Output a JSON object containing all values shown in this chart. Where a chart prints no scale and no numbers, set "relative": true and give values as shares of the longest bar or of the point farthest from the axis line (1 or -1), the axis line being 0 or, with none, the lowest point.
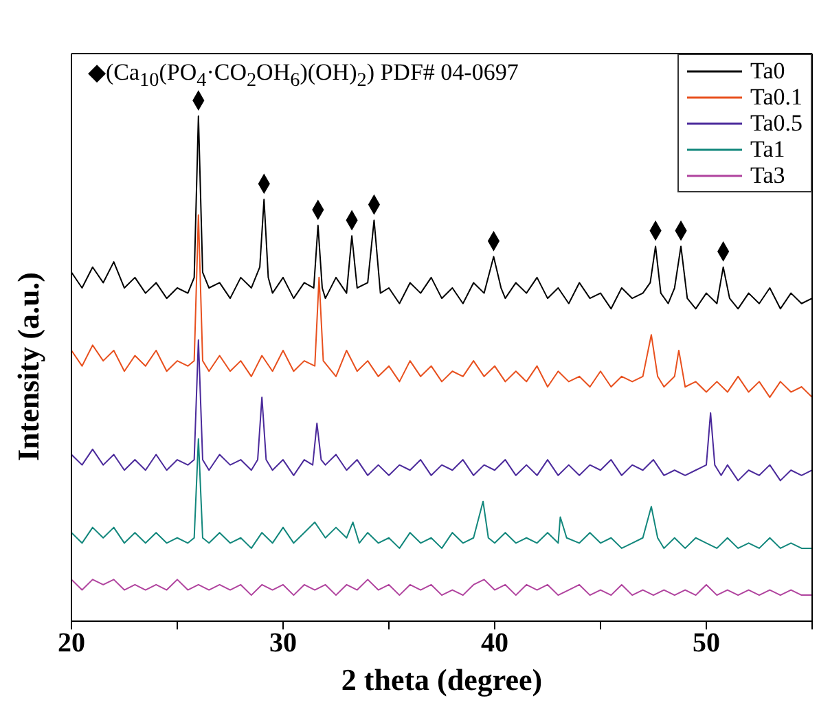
{
  "chart_data": {
    "type": "line",
    "relative": true,
    "xlabel": "2 theta (degree)",
    "ylabel": "Intensity (a.u.)",
    "xlim": [
      20,
      55
    ],
    "xticks": [
      20,
      {
        "value": 25,
        "label": null
      },
      30,
      {
        "value": 35,
        "label": null
      },
      40,
      {
        "value": 45,
        "label": null
      },
      50,
      {
        "value": 55,
        "label": null
      }
    ],
    "legend": "top right",
    "line_style": "solid",
    "annotations": [
      "◆(Ca$_{10}$(PO$_{4}$·CO$_{2}$OH$_{6}$)(OH)$_{2}$) PDF# 04-0697"
    ],
    "series": [
      {
        "name": "Ta0",
        "color": "#000000",
        "x": [
          20,
          20.5,
          21,
          21.5,
          22,
          22.5,
          23,
          23.5,
          24,
          24.5,
          25,
          25.5,
          25.8,
          26.0,
          26.2,
          26.5,
          27,
          27.5,
          28,
          28.5,
          28.9,
          29.1,
          29.3,
          29.5,
          30,
          30.5,
          31,
          31.45,
          31.65,
          31.85,
          32,
          32.5,
          33,
          33.25,
          33.5,
          34,
          34.3,
          34.6,
          35,
          35.5,
          36,
          36.5,
          37,
          37.5,
          38,
          38.5,
          39,
          39.5,
          39.95,
          40.3,
          40.5,
          41,
          41.5,
          42,
          42.5,
          43,
          43.5,
          44,
          44.5,
          45,
          45.5,
          46,
          46.5,
          47,
          47.35,
          47.6,
          47.85,
          48.2,
          48.5,
          48.8,
          49.1,
          49.5,
          50,
          50.5,
          50.8,
          51.1,
          51.5,
          52,
          52.5,
          53,
          53.5,
          54,
          54.5,
          55
        ],
        "values": [
          0.67,
          0.64,
          0.68,
          0.65,
          0.69,
          0.64,
          0.66,
          0.63,
          0.65,
          0.62,
          0.64,
          0.63,
          0.66,
          0.97,
          0.67,
          0.64,
          0.65,
          0.62,
          0.66,
          0.64,
          0.68,
          0.81,
          0.66,
          0.63,
          0.66,
          0.62,
          0.65,
          0.64,
          0.76,
          0.64,
          0.62,
          0.66,
          0.63,
          0.74,
          0.64,
          0.65,
          0.77,
          0.63,
          0.64,
          0.61,
          0.65,
          0.63,
          0.66,
          0.62,
          0.64,
          0.61,
          0.65,
          0.63,
          0.7,
          0.64,
          0.62,
          0.65,
          0.63,
          0.66,
          0.62,
          0.64,
          0.61,
          0.65,
          0.62,
          0.63,
          0.6,
          0.64,
          0.62,
          0.63,
          0.65,
          0.72,
          0.63,
          0.61,
          0.64,
          0.72,
          0.62,
          0.6,
          0.63,
          0.61,
          0.68,
          0.62,
          0.6,
          0.63,
          0.61,
          0.64,
          0.6,
          0.63,
          0.61,
          0.62
        ]
      },
      {
        "name": "Ta0.1",
        "color": "#e8501e",
        "x": [
          20,
          20.5,
          21,
          21.5,
          22,
          22.5,
          23,
          23.5,
          24,
          24.5,
          25,
          25.5,
          25.8,
          26.0,
          26.2,
          26.5,
          27,
          27.5,
          28,
          28.5,
          29,
          29.5,
          30,
          30.5,
          31,
          31.5,
          31.7,
          31.9,
          32.5,
          33,
          33.5,
          34,
          34.5,
          35,
          35.5,
          36,
          36.5,
          37,
          37.5,
          38,
          38.5,
          39,
          39.5,
          40,
          40.5,
          41,
          41.5,
          42,
          42.5,
          43,
          43.5,
          44,
          44.5,
          45,
          45.5,
          46,
          46.5,
          47,
          47.4,
          47.7,
          48,
          48.5,
          48.7,
          49,
          49.5,
          50,
          50.5,
          51,
          51.5,
          52,
          52.5,
          53,
          53.5,
          54,
          54.5,
          55
        ],
        "values": [
          0.52,
          0.49,
          0.53,
          0.5,
          0.52,
          0.48,
          0.51,
          0.49,
          0.52,
          0.48,
          0.5,
          0.49,
          0.5,
          0.78,
          0.5,
          0.48,
          0.51,
          0.48,
          0.5,
          0.47,
          0.51,
          0.48,
          0.52,
          0.48,
          0.5,
          0.49,
          0.66,
          0.5,
          0.47,
          0.52,
          0.48,
          0.5,
          0.47,
          0.49,
          0.46,
          0.5,
          0.47,
          0.49,
          0.46,
          0.48,
          0.47,
          0.5,
          0.47,
          0.49,
          0.46,
          0.48,
          0.46,
          0.49,
          0.45,
          0.48,
          0.46,
          0.47,
          0.45,
          0.48,
          0.45,
          0.47,
          0.46,
          0.47,
          0.55,
          0.47,
          0.45,
          0.47,
          0.52,
          0.45,
          0.46,
          0.44,
          0.46,
          0.44,
          0.47,
          0.44,
          0.46,
          0.43,
          0.46,
          0.44,
          0.45,
          0.43
        ]
      },
      {
        "name": "Ta0.5",
        "color": "#4b2a9b",
        "x": [
          20,
          20.5,
          21,
          21.5,
          22,
          22.5,
          23,
          23.5,
          24,
          24.5,
          25,
          25.5,
          25.8,
          26.0,
          26.2,
          26.5,
          27,
          27.5,
          28,
          28.5,
          28.8,
          29.0,
          29.2,
          29.5,
          30,
          30.5,
          31,
          31.4,
          31.6,
          31.8,
          32,
          32.5,
          33,
          33.5,
          34,
          34.5,
          35,
          35.5,
          36,
          36.5,
          37,
          37.5,
          38,
          38.5,
          39,
          39.5,
          40,
          40.5,
          41,
          41.5,
          42,
          42.5,
          43,
          43.5,
          44,
          44.5,
          45,
          45.5,
          46,
          46.5,
          47,
          47.5,
          48,
          48.5,
          49,
          49.5,
          50,
          50.2,
          50.4,
          50.7,
          51,
          51.5,
          52,
          52.5,
          53,
          53.5,
          54,
          54.5,
          55
        ],
        "values": [
          0.32,
          0.3,
          0.33,
          0.3,
          0.32,
          0.29,
          0.31,
          0.29,
          0.32,
          0.29,
          0.31,
          0.3,
          0.31,
          0.54,
          0.31,
          0.29,
          0.32,
          0.3,
          0.31,
          0.29,
          0.31,
          0.43,
          0.31,
          0.29,
          0.31,
          0.28,
          0.31,
          0.3,
          0.38,
          0.31,
          0.3,
          0.32,
          0.29,
          0.31,
          0.28,
          0.3,
          0.28,
          0.3,
          0.29,
          0.31,
          0.28,
          0.3,
          0.29,
          0.31,
          0.28,
          0.3,
          0.29,
          0.31,
          0.28,
          0.3,
          0.28,
          0.31,
          0.28,
          0.3,
          0.28,
          0.3,
          0.29,
          0.31,
          0.28,
          0.3,
          0.29,
          0.31,
          0.28,
          0.29,
          0.28,
          0.29,
          0.3,
          0.4,
          0.3,
          0.28,
          0.3,
          0.27,
          0.29,
          0.28,
          0.3,
          0.27,
          0.29,
          0.28,
          0.29
        ]
      },
      {
        "name": "Ta1",
        "color": "#12877c",
        "x": [
          20,
          20.5,
          21,
          21.5,
          22,
          22.5,
          23,
          23.5,
          24,
          24.5,
          25,
          25.5,
          25.8,
          26.0,
          26.2,
          26.5,
          27,
          27.5,
          28,
          28.5,
          29,
          29.5,
          30,
          30.5,
          31,
          31.5,
          32,
          32.5,
          33,
          33.3,
          33.6,
          34,
          34.5,
          35,
          35.5,
          36,
          36.5,
          37,
          37.5,
          38,
          38.5,
          39,
          39.45,
          39.7,
          40,
          40.5,
          41,
          41.5,
          42,
          42.5,
          43,
          43.1,
          43.4,
          44,
          44.5,
          45,
          45.5,
          46,
          46.5,
          47,
          47.4,
          47.7,
          48,
          48.5,
          49,
          49.5,
          50,
          50.5,
          51,
          51.5,
          52,
          52.5,
          53,
          53.5,
          54,
          54.5,
          55
        ],
        "values": [
          0.17,
          0.15,
          0.18,
          0.16,
          0.18,
          0.15,
          0.17,
          0.15,
          0.17,
          0.15,
          0.16,
          0.15,
          0.16,
          0.35,
          0.16,
          0.15,
          0.17,
          0.15,
          0.16,
          0.14,
          0.17,
          0.15,
          0.18,
          0.15,
          0.17,
          0.19,
          0.16,
          0.18,
          0.16,
          0.19,
          0.15,
          0.17,
          0.15,
          0.16,
          0.14,
          0.17,
          0.15,
          0.16,
          0.14,
          0.17,
          0.15,
          0.16,
          0.23,
          0.16,
          0.15,
          0.17,
          0.15,
          0.16,
          0.15,
          0.17,
          0.15,
          0.2,
          0.16,
          0.15,
          0.17,
          0.15,
          0.16,
          0.14,
          0.15,
          0.16,
          0.22,
          0.16,
          0.14,
          0.16,
          0.14,
          0.16,
          0.15,
          0.14,
          0.16,
          0.14,
          0.15,
          0.14,
          0.16,
          0.14,
          0.15,
          0.14,
          0.14
        ]
      },
      {
        "name": "Ta3",
        "color": "#b0439e",
        "x": [
          20,
          20.5,
          21,
          21.5,
          22,
          22.5,
          23,
          23.5,
          24,
          24.5,
          25,
          25.5,
          26,
          26.5,
          27,
          27.5,
          28,
          28.5,
          29,
          29.5,
          30,
          30.5,
          31,
          31.5,
          32,
          32.5,
          33,
          33.5,
          34,
          34.5,
          35,
          35.5,
          36,
          36.5,
          37,
          37.5,
          38,
          38.5,
          39,
          39.5,
          40,
          40.5,
          41,
          41.5,
          42,
          42.5,
          43,
          43.5,
          44,
          44.5,
          45,
          45.5,
          46,
          46.5,
          47,
          47.5,
          48,
          48.5,
          49,
          49.5,
          50,
          50.5,
          51,
          51.5,
          52,
          52.5,
          53,
          53.5,
          54,
          54.5,
          55
        ],
        "values": [
          0.08,
          0.06,
          0.08,
          0.07,
          0.08,
          0.06,
          0.07,
          0.06,
          0.07,
          0.06,
          0.08,
          0.06,
          0.07,
          0.06,
          0.07,
          0.06,
          0.07,
          0.05,
          0.07,
          0.06,
          0.07,
          0.05,
          0.07,
          0.06,
          0.07,
          0.05,
          0.07,
          0.06,
          0.08,
          0.06,
          0.07,
          0.05,
          0.07,
          0.06,
          0.07,
          0.05,
          0.06,
          0.05,
          0.07,
          0.08,
          0.06,
          0.07,
          0.05,
          0.07,
          0.06,
          0.07,
          0.05,
          0.06,
          0.07,
          0.05,
          0.06,
          0.05,
          0.07,
          0.05,
          0.06,
          0.05,
          0.06,
          0.05,
          0.06,
          0.05,
          0.07,
          0.05,
          0.06,
          0.05,
          0.06,
          0.05,
          0.06,
          0.05,
          0.06,
          0.05,
          0.05
        ]
      },
      {
        "type": "scatter",
        "marker": "diamond",
        "color": "#000000",
        "x": [
          26.0,
          29.1,
          31.65,
          33.25,
          34.3,
          39.95,
          47.6,
          48.8,
          50.8
        ],
        "values": [
          1.0,
          0.84,
          0.79,
          0.77,
          0.8,
          0.73,
          0.75,
          0.75,
          0.71
        ]
      }
    ]
  }
}
